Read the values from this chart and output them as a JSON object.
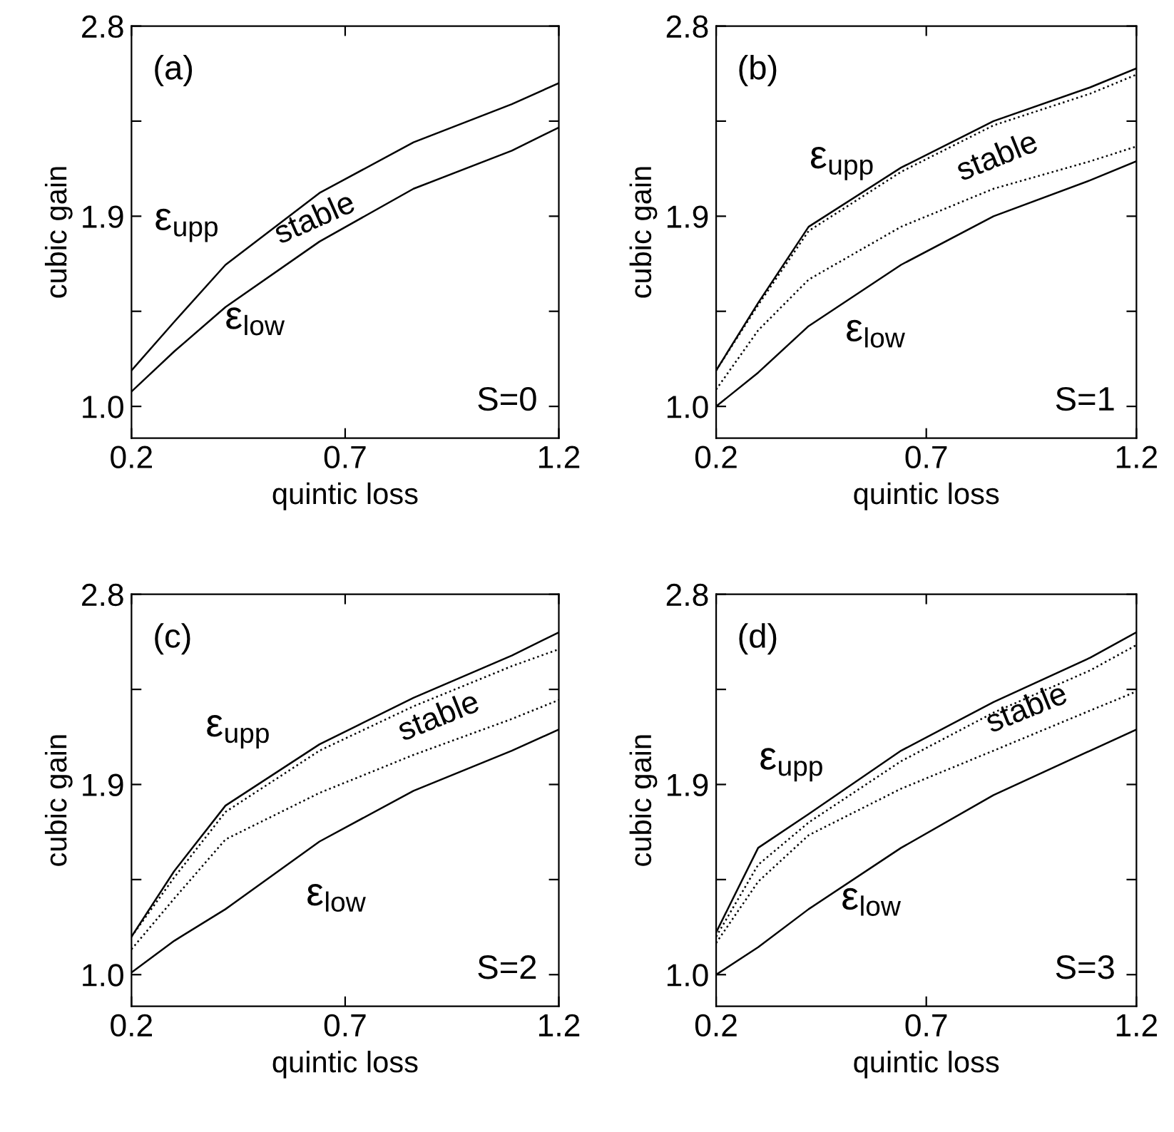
{
  "chart_data": [
    {
      "type": "line",
      "xlabel": "quintic loss",
      "ylabel": "cubic gain",
      "x": [
        0.2,
        0.3,
        0.42,
        0.64,
        0.86,
        1.09,
        1.2
      ],
      "xlim": [
        0.2,
        1.2
      ],
      "ylim": [
        0.85,
        2.8
      ],
      "xticks": [
        0.2,
        0.7,
        1.2
      ],
      "yticks": [
        {
          "value": 1.0,
          "label": "1.0"
        },
        {
          "value": 1.45,
          "label": null
        },
        {
          "value": 1.9,
          "label": "1.9"
        },
        {
          "value": 2.35,
          "label": null
        },
        {
          "value": 2.8,
          "label": "2.8"
        }
      ],
      "grid": false,
      "legend": false,
      "series": [
        {
          "color": "#000000",
          "line_style": "solid",
          "values": [
            1.17,
            1.4,
            1.67,
            2.01,
            2.25,
            2.43,
            2.53
          ]
        },
        {
          "color": "#000000",
          "line_style": "solid",
          "values": [
            1.07,
            1.26,
            1.47,
            1.78,
            2.03,
            2.21,
            2.32
          ]
        }
      ],
      "annotations": [
        "(a)",
        "S=0",
        "stable",
        "ε$_{upp}$",
        "ε$_{low}$"
      ]
    },
    {
      "type": "line",
      "xlabel": "quintic loss",
      "ylabel": "cubic gain",
      "x": [
        0.2,
        0.3,
        0.42,
        0.64,
        0.86,
        1.09,
        1.2
      ],
      "xlim": [
        0.2,
        1.2
      ],
      "ylim": [
        0.85,
        2.8
      ],
      "xticks": [
        0.2,
        0.7,
        1.2
      ],
      "yticks": [
        {
          "value": 1.0,
          "label": "1.0"
        },
        {
          "value": 1.45,
          "label": null
        },
        {
          "value": 1.9,
          "label": "1.9"
        },
        {
          "value": 2.35,
          "label": null
        },
        {
          "value": 2.8,
          "label": "2.8"
        }
      ],
      "grid": false,
      "legend": false,
      "series": [
        {
          "color": "#000000",
          "line_style": "solid",
          "values": [
            1.17,
            1.49,
            1.85,
            2.13,
            2.35,
            2.51,
            2.6
          ]
        },
        {
          "color": "#000000",
          "line_style": "dotted",
          "values": [
            1.17,
            1.48,
            1.83,
            2.11,
            2.33,
            2.48,
            2.57
          ]
        },
        {
          "color": "#000000",
          "line_style": "dotted",
          "values": [
            1.08,
            1.36,
            1.6,
            1.85,
            2.03,
            2.16,
            2.23
          ]
        },
        {
          "color": "#000000",
          "line_style": "solid",
          "values": [
            1.0,
            1.16,
            1.38,
            1.67,
            1.9,
            2.07,
            2.16
          ]
        }
      ],
      "annotations": [
        "(b)",
        "S=1",
        "stable",
        "ε$_{upp}$",
        "ε$_{low}$"
      ]
    },
    {
      "type": "line",
      "xlabel": "quintic loss",
      "ylabel": "cubic gain",
      "x": [
        0.2,
        0.3,
        0.42,
        0.64,
        0.86,
        1.09,
        1.2
      ],
      "xlim": [
        0.2,
        1.2
      ],
      "ylim": [
        0.85,
        2.8
      ],
      "xticks": [
        0.2,
        0.7,
        1.2
      ],
      "yticks": [
        {
          "value": 1.0,
          "label": "1.0"
        },
        {
          "value": 1.45,
          "label": null
        },
        {
          "value": 1.9,
          "label": "1.9"
        },
        {
          "value": 2.35,
          "label": null
        },
        {
          "value": 2.8,
          "label": "2.8"
        }
      ],
      "grid": false,
      "legend": false,
      "series": [
        {
          "color": "#000000",
          "line_style": "solid",
          "values": [
            1.18,
            1.49,
            1.8,
            2.09,
            2.31,
            2.51,
            2.62
          ]
        },
        {
          "color": "#000000",
          "line_style": "dotted",
          "values": [
            1.18,
            1.46,
            1.77,
            2.06,
            2.27,
            2.46,
            2.54
          ]
        },
        {
          "color": "#000000",
          "line_style": "dotted",
          "values": [
            1.12,
            1.36,
            1.64,
            1.86,
            2.04,
            2.21,
            2.3
          ]
        },
        {
          "color": "#000000",
          "line_style": "solid",
          "values": [
            1.01,
            1.16,
            1.31,
            1.63,
            1.87,
            2.06,
            2.16
          ]
        }
      ],
      "annotations": [
        "(c)",
        "S=2",
        "stable",
        "ε$_{upp}$",
        "ε$_{low}$"
      ]
    },
    {
      "type": "line",
      "xlabel": "quintic loss",
      "ylabel": "cubic gain",
      "x": [
        0.2,
        0.3,
        0.42,
        0.64,
        0.86,
        1.09,
        1.2
      ],
      "xlim": [
        0.2,
        1.2
      ],
      "ylim": [
        0.85,
        2.8
      ],
      "xticks": [
        0.2,
        0.7,
        1.2
      ],
      "yticks": [
        {
          "value": 1.0,
          "label": "1.0"
        },
        {
          "value": 1.45,
          "label": null
        },
        {
          "value": 1.9,
          "label": "1.9"
        },
        {
          "value": 2.35,
          "label": null
        },
        {
          "value": 2.8,
          "label": "2.8"
        }
      ],
      "grid": false,
      "legend": false,
      "series": [
        {
          "color": "#000000",
          "line_style": "solid",
          "values": [
            1.2,
            1.6,
            1.76,
            2.06,
            2.29,
            2.5,
            2.62
          ]
        },
        {
          "color": "#000000",
          "line_style": "dotted",
          "values": [
            1.18,
            1.52,
            1.72,
            2.01,
            2.24,
            2.44,
            2.56
          ]
        },
        {
          "color": "#000000",
          "line_style": "dotted",
          "values": [
            1.15,
            1.44,
            1.66,
            1.88,
            2.06,
            2.25,
            2.34
          ]
        },
        {
          "color": "#000000",
          "line_style": "solid",
          "values": [
            1.0,
            1.13,
            1.31,
            1.6,
            1.85,
            2.06,
            2.16
          ]
        }
      ],
      "annotations": [
        "(d)",
        "S=3",
        "stable",
        "ε$_{upp}$",
        "ε$_{low}$"
      ]
    }
  ]
}
